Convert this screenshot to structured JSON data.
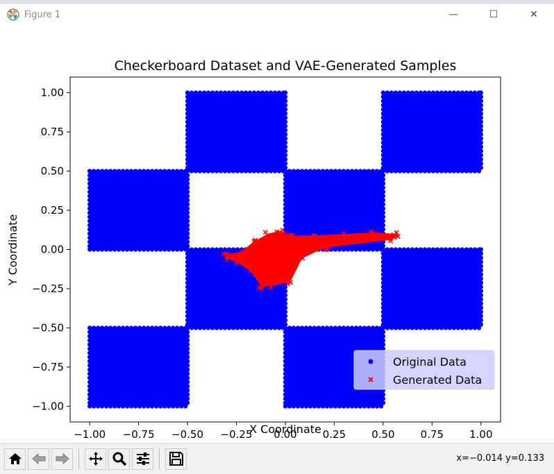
{
  "window": {
    "title": "Figure 1",
    "minimize_glyph": "—",
    "maximize_glyph": "☐",
    "close_glyph": "✕"
  },
  "status": {
    "coordinates": "x=−0.014 y=0.133"
  },
  "toolbar": {
    "buttons": [
      "home-icon",
      "back-arrow-icon",
      "forward-arrow-icon",
      "pan-move-icon",
      "zoom-magnifier-icon",
      "configure-subplots-icon",
      "save-floppy-icon"
    ]
  },
  "chart_data": {
    "type": "scatter",
    "title": "Checkerboard Dataset and VAE-Generated Samples",
    "xlabel": "X Coordinate",
    "ylabel": "Y Coordinate",
    "xlim": [
      -1.1,
      1.1
    ],
    "ylim": [
      -1.1,
      1.1
    ],
    "xticks": [
      -1.0,
      -0.75,
      -0.5,
      -0.25,
      0.0,
      0.25,
      0.5,
      0.75,
      1.0
    ],
    "yticks": [
      -1.0,
      -0.75,
      -0.5,
      -0.25,
      0.0,
      0.25,
      0.5,
      0.75,
      1.0
    ],
    "xtick_labels": [
      "−1.00",
      "−0.75",
      "−0.50",
      "−0.25",
      "0.00",
      "0.25",
      "0.50",
      "0.75",
      "1.00"
    ],
    "ytick_labels": [
      "−1.00",
      "−0.75",
      "−0.50",
      "−0.25",
      "0.00",
      "0.25",
      "0.50",
      "0.75",
      "1.00"
    ],
    "grid": false,
    "legend_position": "bottom-right",
    "series": [
      {
        "name": "Original Data",
        "marker": "circle",
        "color": "#0000ff",
        "squares": [
          {
            "x": [
              -0.5,
              0.0
            ],
            "y": [
              0.5,
              1.0
            ]
          },
          {
            "x": [
              0.5,
              1.0
            ],
            "y": [
              0.5,
              1.0
            ]
          },
          {
            "x": [
              -1.0,
              -0.5
            ],
            "y": [
              0.0,
              0.5
            ]
          },
          {
            "x": [
              0.0,
              0.5
            ],
            "y": [
              0.0,
              0.5
            ]
          },
          {
            "x": [
              -0.5,
              0.0
            ],
            "y": [
              -0.5,
              0.0
            ]
          },
          {
            "x": [
              0.5,
              1.0
            ],
            "y": [
              -0.5,
              0.0
            ]
          },
          {
            "x": [
              -1.0,
              -0.5
            ],
            "y": [
              -1.0,
              -0.5
            ]
          },
          {
            "x": [
              0.0,
              0.5
            ],
            "y": [
              -1.0,
              -0.5
            ]
          }
        ]
      },
      {
        "name": "Generated Data",
        "marker": "x",
        "color": "#ff0000",
        "cluster_outline": [
          [
            -0.29,
            -0.04
          ],
          [
            -0.22,
            -0.02
          ],
          [
            -0.16,
            0.04
          ],
          [
            -0.09,
            0.09
          ],
          [
            -0.03,
            0.11
          ],
          [
            0.03,
            0.08
          ],
          [
            0.15,
            0.08
          ],
          [
            0.3,
            0.09
          ],
          [
            0.45,
            0.1
          ],
          [
            0.57,
            0.09
          ],
          [
            0.54,
            0.07
          ],
          [
            0.4,
            0.05
          ],
          [
            0.2,
            0.02
          ],
          [
            0.08,
            -0.05
          ],
          [
            0.02,
            -0.2
          ],
          [
            -0.06,
            -0.22
          ],
          [
            -0.12,
            -0.23
          ],
          [
            -0.16,
            -0.15
          ],
          [
            -0.24,
            -0.07
          ],
          [
            -0.3,
            -0.05
          ]
        ]
      }
    ]
  }
}
